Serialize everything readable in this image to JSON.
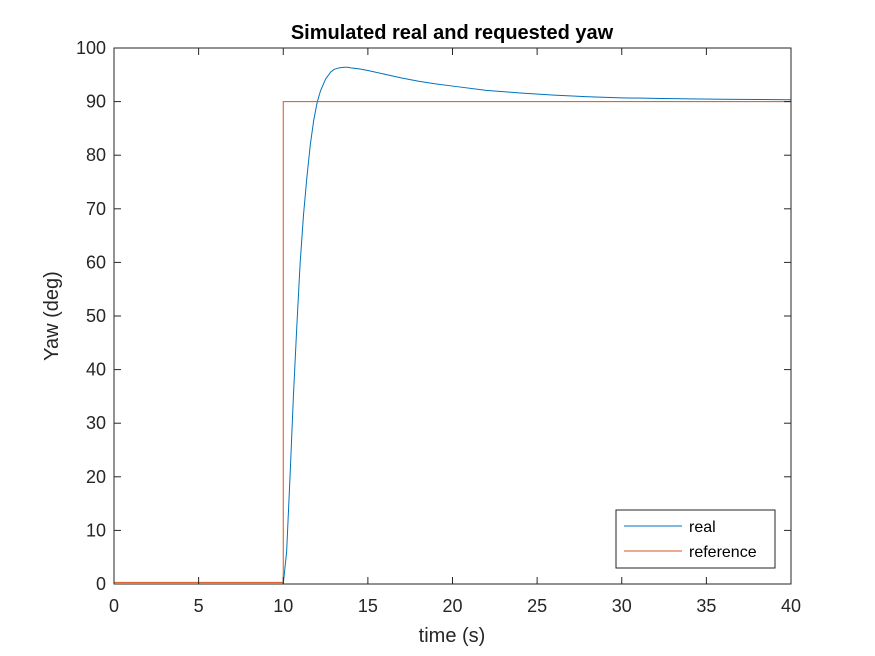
{
  "chart_data": {
    "type": "line",
    "title": "Simulated real and requested yaw",
    "xlabel": "time (s)",
    "ylabel": "Yaw (deg)",
    "xlim": [
      0,
      40
    ],
    "ylim": [
      0,
      100
    ],
    "xticks": [
      0,
      5,
      10,
      15,
      20,
      25,
      30,
      35,
      40
    ],
    "yticks": [
      0,
      10,
      20,
      30,
      40,
      50,
      60,
      70,
      80,
      90,
      100
    ],
    "grid": false,
    "legend_position": "bottom-right",
    "series": [
      {
        "name": "real",
        "color": "#0072BD",
        "x": [
          0,
          10,
          10.2,
          10.4,
          10.6,
          10.8,
          11.0,
          11.2,
          11.4,
          11.6,
          11.8,
          12.0,
          12.2,
          12.5,
          12.8,
          13.0,
          13.3,
          13.6,
          13.8,
          14.0,
          14.5,
          15,
          16,
          17,
          18,
          19,
          20,
          22,
          24,
          26,
          28,
          30,
          32,
          34,
          36,
          38,
          40
        ],
        "y": [
          0,
          0,
          6,
          20,
          35,
          48,
          60,
          69,
          76,
          82,
          86.5,
          89.8,
          92.0,
          94.2,
          95.5,
          96.0,
          96.3,
          96.4,
          96.4,
          96.3,
          96.1,
          95.8,
          95.1,
          94.4,
          93.8,
          93.3,
          92.9,
          92.1,
          91.6,
          91.2,
          90.9,
          90.7,
          90.6,
          90.5,
          90.45,
          90.4,
          90.35
        ]
      },
      {
        "name": "reference",
        "color": "#D95319",
        "x": [
          0,
          10,
          10,
          40
        ],
        "y": [
          0.3,
          0.3,
          90,
          90
        ]
      }
    ]
  }
}
